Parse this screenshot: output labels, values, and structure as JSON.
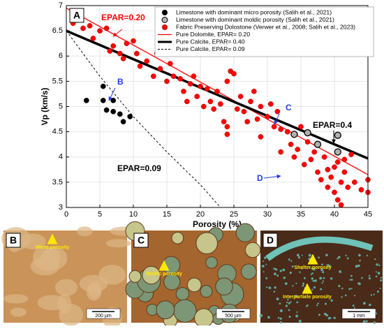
{
  "chart_data": {
    "type": "scatter",
    "panel_label": "A",
    "xlabel": "Porosity (%)",
    "ylabel": "Vp (km/s)",
    "xlim": [
      0,
      45
    ],
    "ylim": [
      3,
      7
    ],
    "xticks": [
      0,
      5,
      10,
      15,
      20,
      25,
      30,
      35,
      40,
      45
    ],
    "yticks": [
      3,
      3.5,
      4,
      4.5,
      5,
      5.5,
      6,
      6.5,
      7
    ],
    "grid": true,
    "legend": "upper right",
    "series": [
      {
        "name": "Limestone with dominant micro porosity (Salih et al., 2021)",
        "kind": "scatter",
        "color": "#000000",
        "edgecolor": "#000000",
        "x": [
          3,
          5.5,
          5.5,
          6,
          7,
          7,
          8,
          8.5,
          9.5
        ],
        "y": [
          5.12,
          5.4,
          5.12,
          4.93,
          5.12,
          4.9,
          4.85,
          4.7,
          4.8
        ]
      },
      {
        "name": "Limestone with dominant moldic porosity (Salih et al., 2021)",
        "kind": "scatter",
        "color": "#b0b0b0",
        "edgecolor": "#000000",
        "x": [
          34,
          36,
          37.5,
          40.5,
          40.5
        ],
        "y": [
          4.45,
          4.48,
          4.25,
          4.43,
          4.1
        ]
      },
      {
        "name": "Fabric Preserving Dolostone (Verwer et al., 2008; Salih et al., 2023)",
        "kind": "scatter",
        "color": "#ff0000",
        "edgecolor": "#b00000",
        "x": [
          1,
          2,
          2.5,
          3.5,
          5,
          4,
          6,
          6.5,
          7,
          8,
          8.5,
          9,
          10,
          10.5,
          11,
          12,
          13,
          13.5,
          14,
          15,
          15.5,
          16,
          17,
          17.5,
          18,
          18.5,
          19,
          19.5,
          20,
          20.5,
          21,
          21.5,
          22,
          22.5,
          23,
          24,
          24.5,
          25,
          23.5,
          24,
          24,
          25.5,
          26,
          26.5,
          27,
          27.5,
          28,
          28.5,
          29,
          29,
          30,
          30.5,
          31,
          31.5,
          32,
          32,
          33,
          33.5,
          34,
          34.5,
          35,
          35.5,
          36,
          36.5,
          37,
          37.5,
          38,
          38.5,
          39,
          39,
          39.5,
          40,
          40,
          40.5,
          41,
          41,
          41.5,
          42,
          42.5,
          43,
          44,
          45,
          45,
          40.5,
          41.5
        ],
        "y": [
          6.65,
          6.75,
          6.55,
          6.6,
          6.5,
          6.35,
          6.55,
          6.1,
          6.2,
          6.05,
          5.95,
          6.25,
          6.3,
          6.05,
          5.8,
          5.9,
          5.6,
          6.05,
          5.75,
          5.5,
          5.85,
          5.6,
          5.55,
          5.3,
          5.1,
          5.45,
          5.6,
          5.2,
          5.4,
          5.0,
          5.35,
          5.1,
          4.95,
          5.3,
          5.05,
          5.5,
          5.7,
          5.65,
          4.7,
          4.45,
          4.6,
          4.95,
          5.2,
          4.9,
          4.7,
          5.1,
          5.3,
          4.75,
          5.0,
          4.4,
          4.8,
          5.05,
          4.6,
          4.9,
          4.55,
          4.1,
          4.5,
          4.25,
          4.0,
          4.15,
          4.6,
          3.85,
          4.3,
          3.95,
          4.1,
          3.7,
          3.55,
          4.0,
          3.75,
          3.4,
          3.6,
          3.3,
          3.8,
          3.15,
          3.5,
          3.05,
          3.7,
          3.4,
          4.05,
          3.5,
          3.35,
          3.55,
          3.3,
          3.9,
          3.95
        ]
      },
      {
        "name": "Pure Dolomite, EPAR= 0.20",
        "kind": "line",
        "color": "#ff0000",
        "width": 1.3,
        "dash": false,
        "x": [
          0,
          45
        ],
        "y": [
          6.95,
          3.65
        ]
      },
      {
        "name": "Pure Calcite, EPAR= 0.40",
        "kind": "line",
        "color": "#000000",
        "width": 3.5,
        "dash": false,
        "x": [
          0,
          45
        ],
        "y": [
          6.5,
          3.97
        ]
      },
      {
        "name": "Pure Calcite, EPAR= 0.09",
        "kind": "line",
        "color": "#000000",
        "width": 1,
        "dash": true,
        "x": [
          0,
          5,
          10,
          15,
          20,
          23
        ],
        "y": [
          6.5,
          5.6,
          4.8,
          4.1,
          3.45,
          3.0
        ]
      }
    ],
    "annotations": [
      {
        "text": "EPAR=0.20",
        "color": "#ff0000"
      },
      {
        "text": "EPAR=0.4",
        "color": "#000000"
      },
      {
        "text": "EPAR=0.09",
        "color": "#000000"
      },
      {
        "text": "B",
        "color": "#1f3fe0"
      },
      {
        "text": "C",
        "color": "#1f3fe0"
      },
      {
        "text": "D",
        "color": "#1f3fe0"
      }
    ]
  },
  "images": [
    {
      "label": "B",
      "notes": [
        "Micro porosity"
      ],
      "scale": "200 µm"
    },
    {
      "label": "C",
      "notes": [
        "Moldic porosity"
      ],
      "scale": "500 µm"
    },
    {
      "label": "D",
      "notes": [
        "Shelter porosity",
        "Interparticle porosity"
      ],
      "scale": "1 mm"
    }
  ]
}
